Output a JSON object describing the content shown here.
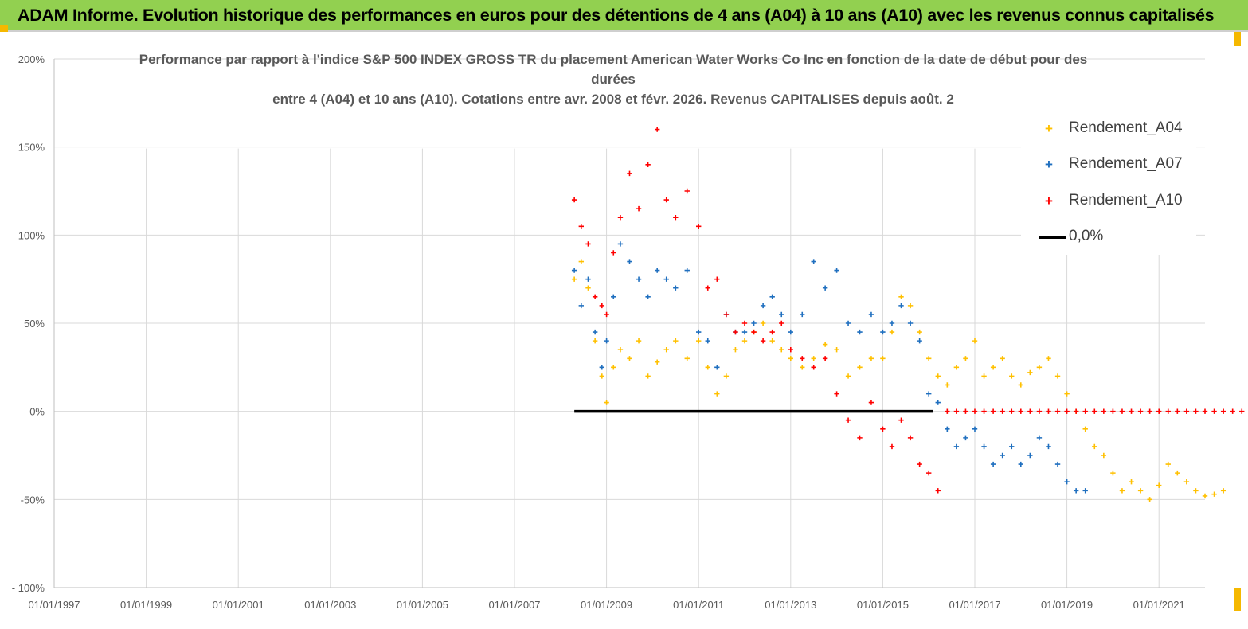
{
  "header": {
    "title": "ADAM Informe. Evolution historique des performances en euros pour des détentions de 4 ans (A04) à 10 ans (A10) avec les revenus connus capitalisés"
  },
  "chart_data": {
    "type": "scatter",
    "title_lines": [
      "Performance par rapport à l'indice S&P 500 INDEX GROSS TR  du placement American Water Works Co Inc en fonction de la date de début pour des",
      "durées",
      "entre 4 (A04) et 10 ans (A10). Cotations entre avr. 2008 et févr. 2026. Revenus CAPITALISES depuis août. 2"
    ],
    "x_range": [
      1997.0,
      2022.0
    ],
    "x_ticks": [
      {
        "value": 1997,
        "label": "01/01/1997"
      },
      {
        "value": 1999,
        "label": "01/01/1999"
      },
      {
        "value": 2001,
        "label": "01/01/2001"
      },
      {
        "value": 2003,
        "label": "01/01/2003"
      },
      {
        "value": 2005,
        "label": "01/01/2005"
      },
      {
        "value": 2007,
        "label": "01/01/2007"
      },
      {
        "value": 2009,
        "label": "01/01/2009"
      },
      {
        "value": 2011,
        "label": "01/01/2011"
      },
      {
        "value": 2013,
        "label": "01/01/2013"
      },
      {
        "value": 2015,
        "label": "01/01/2015"
      },
      {
        "value": 2017,
        "label": "01/01/2017"
      },
      {
        "value": 2019,
        "label": "01/01/2019"
      },
      {
        "value": 2021,
        "label": "01/01/2021"
      }
    ],
    "y_range": [
      -100,
      200
    ],
    "y_ticks": [
      {
        "value": 200,
        "label": "200%"
      },
      {
        "value": 150,
        "label": "150%"
      },
      {
        "value": 100,
        "label": "100%"
      },
      {
        "value": 50,
        "label": "50%"
      },
      {
        "value": 0,
        "label": "0%"
      },
      {
        "value": -50,
        "label": "-50%"
      },
      {
        "value": -100,
        "label": "- 100%"
      }
    ],
    "series": [
      {
        "name": "Rendement_A04",
        "color": "#ffc000",
        "marker": "+",
        "x": [
          2008.3,
          2008.45,
          2008.6,
          2008.75,
          2008.9,
          2009.0,
          2009.15,
          2009.3,
          2009.5,
          2009.7,
          2009.9,
          2010.1,
          2010.3,
          2010.5,
          2010.75,
          2011.0,
          2011.2,
          2011.4,
          2011.6,
          2011.8,
          2012.0,
          2012.2,
          2012.4,
          2012.6,
          2012.8,
          2013.0,
          2013.25,
          2013.5,
          2013.75,
          2014.0,
          2014.25,
          2014.5,
          2014.75,
          2015.0,
          2015.2,
          2015.4,
          2015.6,
          2015.8,
          2016.0,
          2016.2,
          2016.4,
          2016.6,
          2016.8,
          2017.0,
          2017.2,
          2017.4,
          2017.6,
          2017.8,
          2018.0,
          2018.2,
          2018.4,
          2018.6,
          2018.8,
          2019.0,
          2019.2,
          2019.4,
          2019.6,
          2019.8,
          2020.0,
          2020.2,
          2020.4,
          2020.6,
          2020.8,
          2021.0,
          2021.2,
          2021.4,
          2021.6,
          2021.8,
          2022.0,
          2022.2,
          2022.4
        ],
        "y": [
          75,
          85,
          70,
          40,
          20,
          5,
          25,
          35,
          30,
          40,
          20,
          28,
          35,
          40,
          30,
          40,
          25,
          10,
          20,
          35,
          40,
          45,
          50,
          40,
          35,
          30,
          25,
          30,
          38,
          35,
          20,
          25,
          30,
          30,
          45,
          65,
          60,
          45,
          30,
          20,
          15,
          25,
          30,
          40,
          20,
          25,
          30,
          20,
          15,
          22,
          25,
          30,
          20,
          10,
          0,
          -10,
          -20,
          -25,
          -35,
          -45,
          -40,
          -45,
          -50,
          -42,
          -30,
          -35,
          -40,
          -45,
          -48,
          -47,
          -45
        ]
      },
      {
        "name": "Rendement_A07",
        "color": "#1f6fbf",
        "marker": "+",
        "x": [
          2008.3,
          2008.45,
          2008.6,
          2008.75,
          2008.9,
          2009.0,
          2009.15,
          2009.3,
          2009.5,
          2009.7,
          2009.9,
          2010.1,
          2010.3,
          2010.5,
          2010.75,
          2011.0,
          2011.2,
          2011.4,
          2011.6,
          2011.8,
          2012.0,
          2012.2,
          2012.4,
          2012.6,
          2012.8,
          2013.0,
          2013.25,
          2013.5,
          2013.75,
          2014.0,
          2014.25,
          2014.5,
          2014.75,
          2015.0,
          2015.2,
          2015.4,
          2015.6,
          2015.8,
          2016.0,
          2016.2,
          2016.4,
          2016.6,
          2016.8,
          2017.0,
          2017.2,
          2017.4,
          2017.6,
          2017.8,
          2018.0,
          2018.2,
          2018.4,
          2018.6,
          2018.8,
          2019.0,
          2019.2,
          2019.4
        ],
        "y": [
          80,
          60,
          75,
          45,
          25,
          40,
          65,
          95,
          85,
          75,
          65,
          80,
          75,
          70,
          80,
          45,
          40,
          25,
          55,
          45,
          45,
          50,
          60,
          65,
          55,
          45,
          55,
          85,
          70,
          80,
          50,
          45,
          55,
          45,
          50,
          60,
          50,
          40,
          10,
          5,
          -10,
          -20,
          -15,
          -10,
          -20,
          -30,
          -25,
          -20,
          -30,
          -25,
          -15,
          -20,
          -30,
          -40,
          -45,
          -45
        ]
      },
      {
        "name": "Rendement_A10",
        "color": "#ff0000",
        "marker": "+",
        "x": [
          2008.3,
          2008.45,
          2008.6,
          2008.75,
          2008.9,
          2009.0,
          2009.15,
          2009.3,
          2009.5,
          2009.7,
          2009.9,
          2010.1,
          2010.3,
          2010.5,
          2010.75,
          2011.0,
          2011.2,
          2011.4,
          2011.6,
          2011.8,
          2012.0,
          2012.2,
          2012.4,
          2012.6,
          2012.8,
          2013.0,
          2013.25,
          2013.5,
          2013.75,
          2014.0,
          2014.25,
          2014.5,
          2014.75,
          2015.0,
          2015.2,
          2015.4,
          2015.6,
          2015.8,
          2016.0,
          2016.2,
          2016.4,
          2016.6,
          2016.8,
          2017.0,
          2017.2,
          2017.4,
          2017.6,
          2017.8,
          2018.0,
          2018.2,
          2018.4,
          2018.6,
          2018.8,
          2019.0,
          2019.2,
          2019.4,
          2019.6,
          2019.8,
          2020.0,
          2020.2,
          2020.4,
          2020.6,
          2020.8,
          2021.0,
          2021.2,
          2021.4,
          2021.6,
          2021.8,
          2022.0,
          2022.2,
          2022.4,
          2022.6,
          2022.8,
          2023.0
        ],
        "y": [
          120,
          105,
          95,
          65,
          60,
          55,
          90,
          110,
          135,
          115,
          140,
          160,
          120,
          110,
          125,
          105,
          70,
          75,
          55,
          45,
          50,
          45,
          40,
          45,
          50,
          35,
          30,
          25,
          30,
          10,
          -5,
          -15,
          5,
          -10,
          -20,
          -5,
          -15,
          -30,
          -35,
          -45,
          0,
          0,
          0,
          0,
          0,
          0,
          0,
          0,
          0,
          0,
          0,
          0,
          0,
          0,
          0,
          0,
          0,
          0,
          0,
          0,
          0,
          0,
          0,
          0,
          0,
          0,
          0,
          0,
          0,
          0,
          0,
          0,
          0,
          0
        ]
      },
      {
        "name": "0,0%",
        "color": "#000000",
        "marker": "line",
        "x": [
          2008.3,
          2016.1
        ],
        "y": [
          0,
          0
        ]
      }
    ],
    "legend": {
      "position": "top-right",
      "entries": [
        {
          "name": "Rendement_A04",
          "marker": "+",
          "color": "#ffc000"
        },
        {
          "name": "Rendement_A07",
          "marker": "+",
          "color": "#1f6fbf"
        },
        {
          "name": "Rendement_A10",
          "marker": "+",
          "color": "#ff0000"
        },
        {
          "name": "0,0%",
          "marker": "line",
          "color": "#000000"
        }
      ]
    },
    "grid": true
  }
}
